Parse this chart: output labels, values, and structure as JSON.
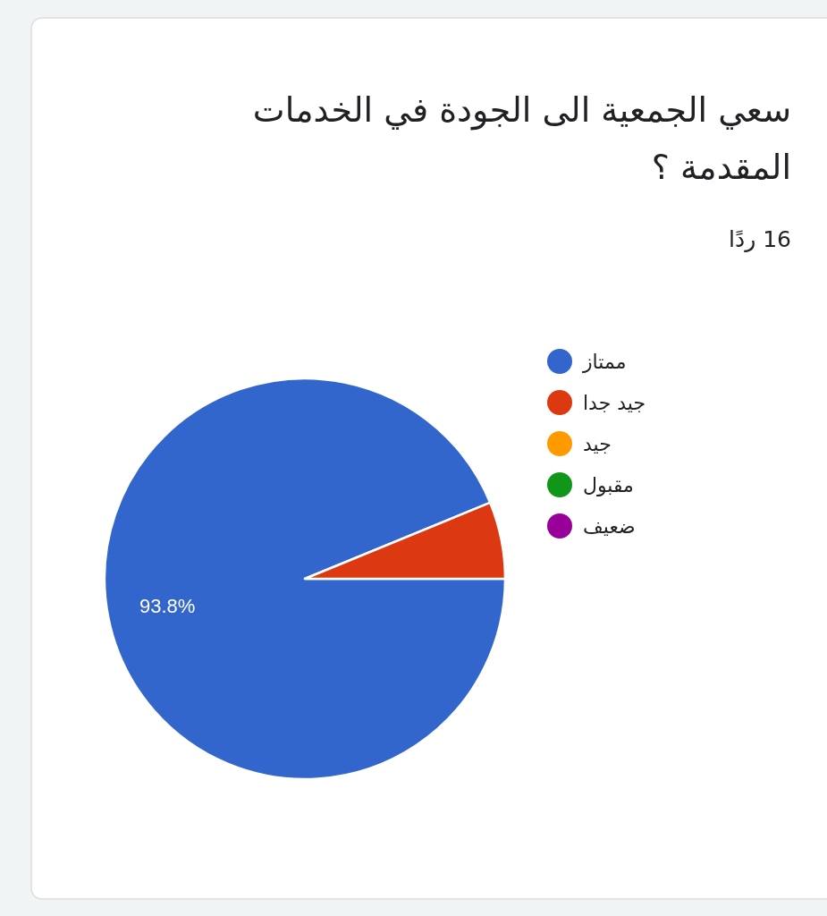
{
  "chart_data": {
    "type": "pie",
    "title": "سعي الجمعية الى الجودة في الخدمات المقدمة ؟",
    "subtitle": "16 ردًا",
    "categories": [
      "ممتاز",
      "جيد جدا",
      "جيد",
      "مقبول",
      "ضعيف"
    ],
    "values": [
      93.8,
      6.2,
      0,
      0,
      0
    ],
    "colors": [
      "#3366cc",
      "#dc3912",
      "#ff9900",
      "#109618",
      "#990099"
    ],
    "value_labels": [
      "93.8%",
      null,
      null,
      null,
      null
    ],
    "legend": "right"
  }
}
